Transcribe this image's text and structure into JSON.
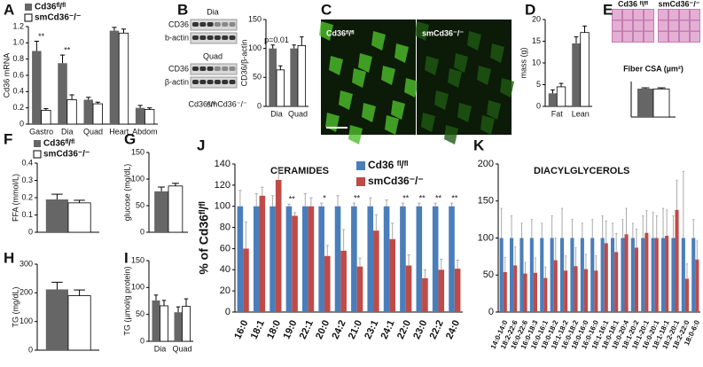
{
  "chart_data": [
    {
      "type": "bar",
      "label": "A",
      "ylabel": "Cd36 mRNA",
      "categories": [
        "Gastro",
        "Dia",
        "Quad",
        "Heart",
        "Abdom"
      ],
      "series": [
        {
          "name": "Cd36ᶠˡ/ᶠˡ",
          "color": "#666666",
          "values": [
            0.9,
            0.75,
            0.3,
            1.15,
            0.2
          ],
          "errors": [
            0.12,
            0.1,
            0.03,
            0.04,
            0.03
          ]
        },
        {
          "name": "smCd36⁻/⁻",
          "color": "#ffffff",
          "values": [
            0.17,
            0.3,
            0.25,
            1.12,
            0.18
          ],
          "errors": [
            0.02,
            0.06,
            0.02,
            0.05,
            0.02
          ]
        }
      ],
      "ylim": [
        0,
        1.2
      ],
      "yticks": [
        0,
        0.2,
        0.4,
        0.6,
        0.8,
        {
          "value": 1,
          "label": "1.0"
        },
        1.2
      ],
      "legend": "above",
      "annotations": [
        {
          "text": "**",
          "at": "Gastro"
        },
        {
          "text": "**",
          "at": "Dia"
        }
      ]
    },
    {
      "type": "bar",
      "label": "B",
      "ylabel": "CD36/β-actin",
      "categories": [
        "Dia",
        "Quad"
      ],
      "series": [
        {
          "color": "#666666",
          "values": [
            100,
            100
          ],
          "errors": [
            6,
            6
          ]
        },
        {
          "color": "#ffffff",
          "values": [
            63,
            105
          ],
          "errors": [
            7,
            15
          ]
        }
      ],
      "ylim": [
        0,
        150
      ],
      "yticks": [
        0,
        50,
        100,
        150
      ],
      "annotations": [
        {
          "text": "p=0.01",
          "at": "Dia"
        }
      ]
    },
    {
      "type": "bar",
      "label": "D",
      "ylabel": "mass (g)",
      "categories": [
        "Fat",
        "Lean"
      ],
      "series": [
        {
          "color": "#666666",
          "values": [
            3,
            14.5
          ],
          "errors": [
            0.8,
            1.5
          ]
        },
        {
          "color": "#ffffff",
          "values": [
            4.5,
            17
          ],
          "errors": [
            0.8,
            1.5
          ]
        }
      ],
      "ylim": [
        0,
        20
      ],
      "yticks": [
        0,
        5,
        10,
        15,
        20
      ]
    },
    {
      "type": "bar",
      "label": "E",
      "title": "Fiber CSA (µm²)",
      "series": [
        {
          "color": "#666666",
          "values": [
            2000
          ],
          "errors": [
            60
          ]
        },
        {
          "color": "#ffffff",
          "values": [
            1980
          ],
          "errors": [
            80
          ]
        }
      ],
      "ylim": [
        0,
        2500
      ]
    },
    {
      "type": "bar",
      "label": "F",
      "ylabel": "FFA (mmol/L)",
      "series": [
        {
          "name": "Cd36ᶠˡ/ᶠˡ",
          "color": "#666666",
          "values": [
            0.19
          ],
          "errors": [
            0.03
          ]
        },
        {
          "name": "smCd36⁻/⁻",
          "color": "#ffffff",
          "values": [
            0.17
          ],
          "errors": [
            0.015
          ]
        }
      ],
      "ylim": [
        0,
        0.4
      ],
      "yticks": [
        0,
        0.1,
        0.2,
        0.3,
        0.4
      ],
      "legend": "above"
    },
    {
      "type": "bar",
      "label": "G",
      "ylabel": "glucose (mg/dL)",
      "series": [
        {
          "color": "#666666",
          "values": [
            77
          ],
          "errors": [
            8
          ]
        },
        {
          "color": "#ffffff",
          "values": [
            87
          ],
          "errors": [
            5
          ]
        }
      ],
      "ylim": [
        0,
        150
      ],
      "yticks": [
        0,
        50,
        100,
        150
      ]
    },
    {
      "type": "bar",
      "label": "H",
      "ylabel": "TG (mg/dL)",
      "series": [
        {
          "color": "#666666",
          "values": [
            212
          ],
          "errors": [
            25
          ]
        },
        {
          "color": "#ffffff",
          "values": [
            190
          ],
          "errors": [
            20
          ]
        }
      ],
      "ylim": [
        0,
        300
      ],
      "yticks": [
        0,
        100,
        200,
        300
      ]
    },
    {
      "type": "bar",
      "label": "I",
      "ylabel": "TG (µmol/g protein)",
      "categories": [
        "Dia",
        "Quad"
      ],
      "series": [
        {
          "color": "#666666",
          "values": [
            76,
            54
          ],
          "errors": [
            10,
            10
          ]
        },
        {
          "color": "#ffffff",
          "values": [
            66,
            65
          ],
          "errors": [
            10,
            14
          ]
        }
      ],
      "ylim": [
        0,
        150
      ],
      "yticks": [
        0,
        50,
        100,
        150
      ]
    },
    {
      "type": "bar",
      "label": "J",
      "title": "CERAMIDES",
      "ylabel": "% of Cd36ᶠˡ/ᶠˡ",
      "rotate_labels": true,
      "categories": [
        "16:0",
        "18:1",
        "18:0",
        "19:0",
        "22:1",
        "20:0",
        "24:2",
        "21:0",
        "23:1",
        "24:1",
        "22:0",
        "23:0",
        "22:2",
        "24:0"
      ],
      "series": [
        {
          "name": "Cd36 ᶠˡ/ᶠˡ",
          "color": "#4a7ebb",
          "values": [
            100,
            100,
            100,
            100,
            100,
            100,
            100,
            100,
            100,
            100,
            100,
            100,
            100,
            100
          ],
          "errors": [
            15,
            12,
            10,
            2,
            12,
            3,
            10,
            3,
            8,
            6,
            3,
            3,
            3,
            3
          ]
        },
        {
          "name": "smCd36⁻/⁻",
          "color": "#be4b48",
          "values": [
            60,
            110,
            125,
            91,
            100,
            53,
            58,
            43,
            77,
            69,
            44,
            32,
            40,
            41
          ],
          "errors": [
            25,
            8,
            10,
            3,
            8,
            10,
            20,
            8,
            15,
            15,
            10,
            8,
            10,
            8
          ]
        }
      ],
      "ylim": [
        0,
        140
      ],
      "yticks": [
        0,
        20,
        40,
        60,
        80,
        100,
        120,
        140
      ],
      "legend": "top-right",
      "annotations": [
        {
          "text": "**",
          "at": "19:0"
        },
        {
          "text": "*",
          "at": "20:0"
        },
        {
          "text": "**",
          "at": "21:0"
        },
        {
          "text": "**",
          "at": "22:0"
        },
        {
          "text": "**",
          "at": "23:0"
        },
        {
          "text": "**",
          "at": "22:2"
        },
        {
          "text": "**",
          "at": "24:0"
        }
      ]
    },
    {
      "type": "bar",
      "label": "K",
      "title": "DIACYLGLYCEROLS",
      "rotate_labels": true,
      "categories": [
        "14:0-14:0",
        "18:2-22:6",
        "16:0-22:6",
        "16:0-18:3",
        "16:0-16:1",
        "18:0-18:2",
        "18:1-18:2",
        "16:0-18:2",
        "18:0-16:0",
        "16:0-16:0",
        "18:1-16:1",
        "18:0-18:1",
        "18:0-20:4",
        "18:1-20:2",
        "18:1-20:1",
        "16:0-20:1",
        "18:1-18:1",
        "18:2-20:1",
        "18:2-22:0",
        "18:0-6:0"
      ],
      "series": [
        {
          "color": "#4a7ebb",
          "values": [
            100,
            100,
            100,
            100,
            100,
            100,
            100,
            100,
            100,
            100,
            100,
            100,
            100,
            100,
            100,
            100,
            100,
            100,
            100,
            100
          ],
          "errors": [
            40,
            30,
            20,
            25,
            20,
            30,
            40,
            25,
            20,
            25,
            30,
            20,
            25,
            20,
            30,
            35,
            40,
            30,
            90,
            25
          ]
        },
        {
          "color": "#be4b48",
          "values": [
            54,
            63,
            52,
            53,
            46,
            70,
            56,
            62,
            58,
            56,
            93,
            81,
            105,
            87,
            107,
            100,
            103,
            138,
            45,
            71
          ],
          "errors": [
            20,
            25,
            15,
            20,
            15,
            30,
            20,
            25,
            20,
            20,
            30,
            25,
            35,
            25,
            30,
            30,
            35,
            40,
            20,
            25
          ]
        }
      ],
      "ylim": [
        0,
        200
      ],
      "yticks": [
        0,
        50,
        100,
        150,
        200
      ]
    }
  ],
  "blot": {
    "groups": [
      {
        "title": "Dia",
        "rows": [
          "CD36",
          "b-actin"
        ]
      },
      {
        "title": "Quad",
        "rows": [
          "CD36",
          "β-actin"
        ]
      }
    ],
    "lanes": [
      "Cd36ᶠˡ/ᶠˡ",
      "smCd36⁻/⁻"
    ]
  },
  "micrograph": {
    "label": "C",
    "images": [
      "Cd36ᶠˡ/ᶠˡ",
      "smCd36⁻/⁻"
    ]
  },
  "histology": {
    "images": [
      "Cd36 ᶠˡ/ᶠˡ",
      "smCd36⁻/⁻"
    ]
  }
}
